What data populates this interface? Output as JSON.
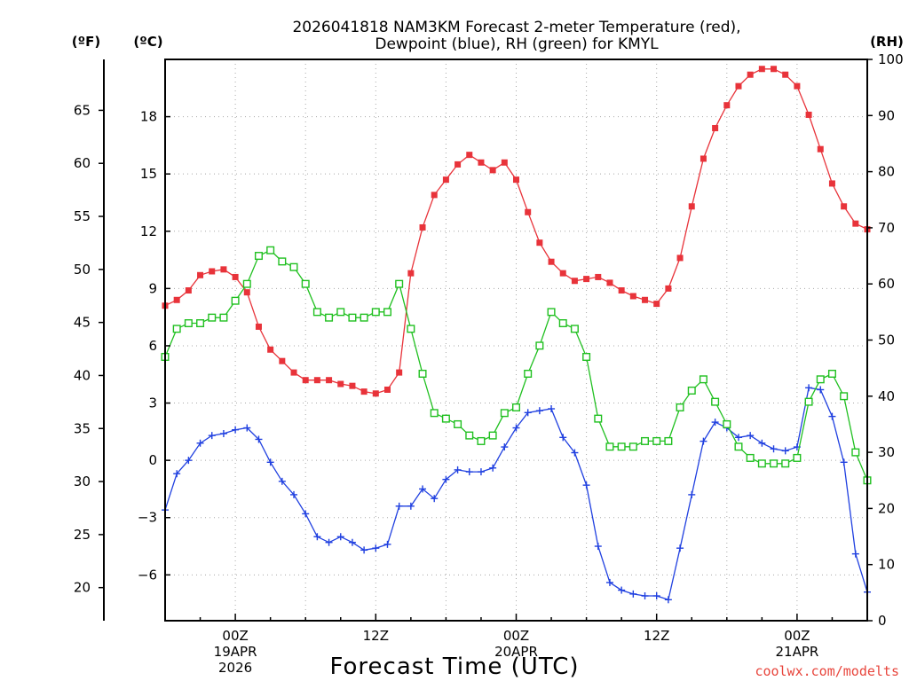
{
  "chart_data": {
    "type": "line",
    "title": [
      "2026041818 NAM3KM Forecast 2-meter Temperature (red),",
      "Dewpoint (blue), RH (green) for KMYL"
    ],
    "xlabel": "Forecast Time (UTC)",
    "credit": "coolwx.com/modelts",
    "unit_labels": {
      "fahrenheit": "(ºF)",
      "celsius": "(ºC)",
      "rh": "(RH)"
    },
    "x_start_hour": 18,
    "x_end_hour": 78,
    "x_ticks": [
      {
        "hour": 24,
        "lines": [
          "00Z",
          "19APR",
          "2026"
        ]
      },
      {
        "hour": 36,
        "lines": [
          "12Z"
        ]
      },
      {
        "hour": 48,
        "lines": [
          "00Z",
          "20APR"
        ]
      },
      {
        "hour": 60,
        "lines": [
          "12Z"
        ]
      },
      {
        "hour": 72,
        "lines": [
          "00Z",
          "21APR"
        ]
      }
    ],
    "celsius_axis": {
      "range": [
        -8.4,
        21.0
      ],
      "ticks": [
        -6,
        -3,
        0,
        3,
        6,
        9,
        12,
        15,
        18
      ]
    },
    "fahrenheit_axis": {
      "ticks": [
        20,
        25,
        30,
        35,
        40,
        45,
        50,
        55,
        60,
        65
      ]
    },
    "rh_axis": {
      "range": [
        0,
        100
      ],
      "ticks": [
        0,
        10,
        20,
        30,
        40,
        50,
        60,
        70,
        80,
        90,
        100
      ]
    },
    "series": [
      {
        "name": "Temperature",
        "unit": "C",
        "color": "#e8333a",
        "marker": "filled-square",
        "values": [
          8.1,
          8.4,
          8.9,
          9.7,
          9.9,
          10.0,
          9.6,
          8.8,
          7.0,
          5.8,
          5.2,
          4.6,
          4.2,
          4.2,
          4.2,
          4.0,
          3.9,
          3.6,
          3.5,
          3.7,
          4.6,
          9.8,
          12.2,
          13.9,
          14.7,
          15.5,
          16.0,
          15.6,
          15.2,
          15.6,
          14.7,
          13.0,
          11.4,
          10.4,
          9.8,
          9.4,
          9.5,
          9.6,
          9.3,
          8.9,
          8.6,
          8.4,
          8.2,
          9.0,
          10.6,
          13.3,
          15.8,
          17.4,
          18.6,
          19.6,
          20.2,
          20.5,
          20.5,
          20.2,
          19.6,
          18.1,
          16.3,
          14.5,
          13.3,
          12.4,
          12.1
        ]
      },
      {
        "name": "Dewpoint",
        "unit": "C",
        "color": "#2040e0",
        "marker": "plus",
        "values": [
          -2.6,
          -0.7,
          0.0,
          0.9,
          1.3,
          1.4,
          1.6,
          1.7,
          1.1,
          -0.1,
          -1.1,
          -1.8,
          -2.8,
          -4.0,
          -4.3,
          -4.0,
          -4.3,
          -4.7,
          -4.6,
          -4.4,
          -2.4,
          -2.4,
          -1.5,
          -2.0,
          -1.0,
          -0.5,
          -0.6,
          -0.6,
          -0.4,
          0.7,
          1.7,
          2.5,
          2.6,
          2.7,
          1.2,
          0.4,
          -1.3,
          -4.5,
          -6.4,
          -6.8,
          -7.0,
          -7.1,
          -7.1,
          -7.3,
          -4.6,
          -1.8,
          1.0,
          2.0,
          1.7,
          1.2,
          1.3,
          0.9,
          0.6,
          0.5,
          0.7,
          3.8,
          3.7,
          2.3,
          -0.1,
          -4.9,
          -6.9
        ]
      },
      {
        "name": "RH",
        "unit": "%",
        "color": "#20c020",
        "marker": "open-square",
        "values": [
          47,
          52,
          53,
          53,
          54,
          54,
          57,
          60,
          65,
          66,
          64,
          63,
          60,
          55,
          54,
          55,
          54,
          54,
          55,
          55,
          60,
          52,
          44,
          37,
          36,
          35,
          33,
          32,
          33,
          37,
          38,
          44,
          49,
          55,
          53,
          52,
          47,
          36,
          31,
          31,
          31,
          32,
          32,
          32,
          38,
          41,
          43,
          39,
          35,
          31,
          29,
          28,
          28,
          28,
          29,
          39,
          43,
          44,
          40,
          30,
          25
        ]
      }
    ]
  }
}
